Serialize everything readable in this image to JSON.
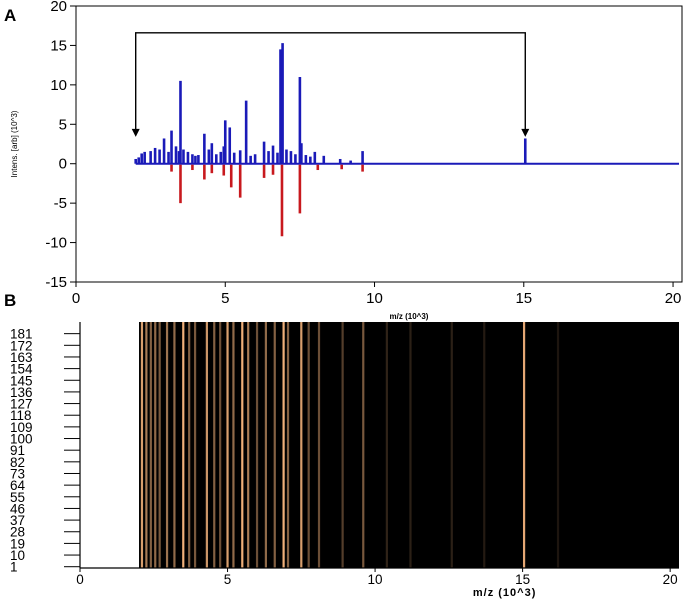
{
  "panels": {
    "a_letter": "A",
    "b_letter": "B"
  },
  "chart_data": [
    {
      "type": "line",
      "panel": "A",
      "xlabel": "m/z (10^3)",
      "ylabel": "Intens. [arb] (10^3)",
      "xlim": [
        0,
        20.3
      ],
      "ylim": [
        -15,
        20
      ],
      "x_ticks": [
        0,
        5,
        10,
        15,
        20
      ],
      "y_ticks": [
        20,
        15,
        10,
        5,
        0,
        -5,
        -10,
        -15
      ],
      "grid": false,
      "baseline_start": 2.0,
      "baseline_end": 20.2,
      "positive_color": "#1a1ab8",
      "negative_color": "#c8191e",
      "series": [
        {
          "direction": "positive",
          "color": "#1a1ab8",
          "x": [
            2.0,
            2.1,
            2.2,
            2.3,
            2.5,
            2.65,
            2.8,
            2.95,
            3.1,
            3.2,
            3.35,
            3.45,
            3.5,
            3.6,
            3.75,
            3.9,
            4.0,
            4.1,
            4.3,
            4.45,
            4.55,
            4.7,
            4.85,
            4.95,
            5.0,
            5.15,
            5.3,
            5.5,
            5.7,
            5.85,
            6.0,
            6.3,
            6.45,
            6.6,
            6.75,
            6.85,
            6.92,
            7.05,
            7.2,
            7.35,
            7.5,
            7.55,
            7.7,
            7.85,
            8.0,
            8.3,
            8.85,
            9.2,
            9.6,
            15.05
          ],
          "values": [
            0.6,
            0.8,
            1.3,
            1.5,
            1.6,
            2.0,
            1.8,
            3.2,
            1.5,
            4.2,
            2.2,
            1.6,
            10.5,
            1.8,
            1.5,
            1.2,
            1.0,
            1.1,
            3.8,
            1.8,
            2.6,
            1.2,
            1.5,
            2.2,
            5.5,
            4.6,
            1.4,
            1.7,
            8.0,
            1.0,
            1.2,
            2.8,
            1.6,
            2.3,
            1.4,
            14.5,
            15.3,
            1.8,
            1.6,
            1.2,
            11.0,
            2.6,
            1.1,
            0.9,
            1.5,
            1.0,
            0.6,
            0.4,
            1.6,
            3.2
          ]
        },
        {
          "direction": "negative",
          "color": "#c8191e",
          "x": [
            3.2,
            3.5,
            3.9,
            4.3,
            4.55,
            4.95,
            5.2,
            5.5,
            6.3,
            6.6,
            6.9,
            7.5,
            8.1,
            8.9,
            9.6
          ],
          "values": [
            -1.0,
            -5.0,
            -0.8,
            -2.0,
            -1.2,
            -1.5,
            -3.0,
            -4.3,
            -1.8,
            -1.4,
            -9.2,
            -6.3,
            -0.8,
            -0.7,
            -1.0
          ]
        }
      ],
      "annotation": {
        "type": "bracket-arrows",
        "x_start": 2.0,
        "x_end": 15.05,
        "y_top": 16.6,
        "y_tip": 3.4
      }
    },
    {
      "type": "heatmap",
      "panel": "B",
      "xlabel": "m/z (10^3)",
      "xlim": [
        0,
        20.3
      ],
      "x_ticks": [
        0,
        5,
        10,
        15,
        20
      ],
      "ylim": [
        0,
        190
      ],
      "y_ticks": [
        1,
        10,
        19,
        28,
        37,
        46,
        55,
        64,
        73,
        82,
        91,
        100,
        109,
        118,
        127,
        136,
        145,
        154,
        163,
        172,
        181
      ],
      "data_x_start": 2.0,
      "data_x_end": 20.2,
      "background_color": "#000000",
      "peak_color": "#f0b07a",
      "band_peaks": [
        {
          "x": 2.1,
          "intensity": 0.9
        },
        {
          "x": 2.25,
          "intensity": 0.7
        },
        {
          "x": 2.4,
          "intensity": 0.55
        },
        {
          "x": 2.55,
          "intensity": 0.6
        },
        {
          "x": 2.7,
          "intensity": 0.5
        },
        {
          "x": 2.95,
          "intensity": 0.65
        },
        {
          "x": 3.2,
          "intensity": 0.6
        },
        {
          "x": 3.5,
          "intensity": 1.0
        },
        {
          "x": 3.7,
          "intensity": 0.55
        },
        {
          "x": 3.9,
          "intensity": 0.5
        },
        {
          "x": 4.3,
          "intensity": 0.85
        },
        {
          "x": 4.55,
          "intensity": 0.55
        },
        {
          "x": 4.75,
          "intensity": 0.45
        },
        {
          "x": 5.0,
          "intensity": 0.9
        },
        {
          "x": 5.2,
          "intensity": 0.6
        },
        {
          "x": 5.5,
          "intensity": 1.0
        },
        {
          "x": 5.7,
          "intensity": 0.7
        },
        {
          "x": 6.0,
          "intensity": 0.45
        },
        {
          "x": 6.3,
          "intensity": 0.6
        },
        {
          "x": 6.6,
          "intensity": 0.55
        },
        {
          "x": 6.9,
          "intensity": 1.0
        },
        {
          "x": 7.05,
          "intensity": 0.55
        },
        {
          "x": 7.5,
          "intensity": 0.9
        },
        {
          "x": 7.75,
          "intensity": 0.45
        },
        {
          "x": 8.1,
          "intensity": 0.45
        },
        {
          "x": 8.9,
          "intensity": 0.35
        },
        {
          "x": 9.6,
          "intensity": 0.5
        },
        {
          "x": 10.4,
          "intensity": 0.2
        },
        {
          "x": 11.2,
          "intensity": 0.18
        },
        {
          "x": 12.6,
          "intensity": 0.18
        },
        {
          "x": 13.7,
          "intensity": 0.15
        },
        {
          "x": 15.05,
          "intensity": 0.95
        },
        {
          "x": 16.2,
          "intensity": 0.12
        }
      ]
    }
  ]
}
